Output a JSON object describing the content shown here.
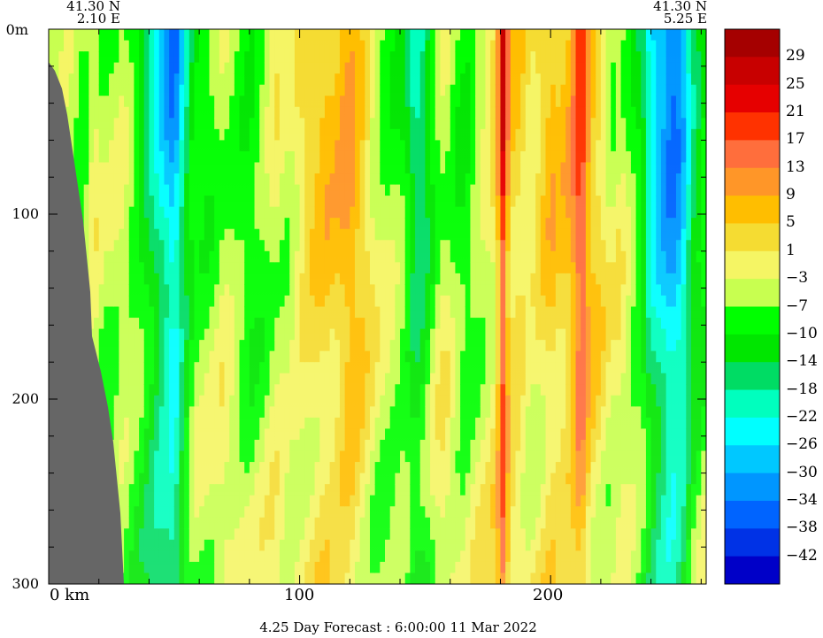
{
  "corners": {
    "left": {
      "lat": "41.30 N",
      "lon": "2.10 E"
    },
    "right": {
      "lat": "41.30 N",
      "lon": "5.25 E"
    }
  },
  "chart_data": {
    "type": "heatmap",
    "title": "",
    "xlabel": "",
    "ylabel": "",
    "x_unit": "km",
    "xlim": [
      0,
      262
    ],
    "ylim": [
      0,
      300
    ],
    "x_ticks": [
      {
        "value": 0,
        "label": "0 km"
      },
      {
        "value": 100,
        "label": "100"
      },
      {
        "value": 200,
        "label": "200"
      }
    ],
    "y_ticks": [
      {
        "value": 0,
        "label": "0m"
      },
      {
        "value": 100,
        "label": "100"
      },
      {
        "value": 200,
        "label": "200"
      },
      {
        "value": 300,
        "label": "300"
      }
    ],
    "colorbar": {
      "labels": [
        "29",
        "25",
        "21",
        "17",
        "13",
        "9",
        "5",
        "1",
        "−3",
        "−7",
        "−10",
        "−14",
        "−18",
        "−22",
        "−26",
        "−30",
        "−34",
        "−38",
        "−42"
      ],
      "colors_top_to_bottom": [
        "#a50000",
        "#c80000",
        "#e60000",
        "#ff3200",
        "#ff6e3c",
        "#ff9628",
        "#ffbe00",
        "#f5dc32",
        "#f5f564",
        "#c8ff50",
        "#00ff00",
        "#00e600",
        "#00dc64",
        "#00ffbe",
        "#00ffff",
        "#00c8ff",
        "#0096ff",
        "#0064ff",
        "#0032e6",
        "#0000c8"
      ]
    },
    "section_profile": [
      [
        0,
        -8
      ],
      [
        8,
        -5
      ],
      [
        14,
        -9
      ],
      [
        18,
        -1
      ],
      [
        22,
        -7
      ],
      [
        30,
        -4
      ],
      [
        38,
        -14
      ],
      [
        44,
        -24
      ],
      [
        50,
        -34
      ],
      [
        54,
        -20
      ],
      [
        58,
        -9
      ],
      [
        64,
        -8
      ],
      [
        70,
        -2
      ],
      [
        76,
        -7
      ],
      [
        80,
        -10
      ],
      [
        86,
        -6
      ],
      [
        90,
        -1
      ],
      [
        96,
        -4
      ],
      [
        100,
        1
      ],
      [
        104,
        4
      ],
      [
        110,
        7
      ],
      [
        114,
        6
      ],
      [
        120,
        11
      ],
      [
        126,
        4
      ],
      [
        130,
        -3
      ],
      [
        134,
        -6
      ],
      [
        138,
        -7
      ],
      [
        142,
        -10
      ],
      [
        146,
        -20
      ],
      [
        150,
        -16
      ],
      [
        154,
        -6
      ],
      [
        158,
        -1
      ],
      [
        162,
        -7
      ],
      [
        166,
        -10
      ],
      [
        170,
        -5
      ],
      [
        174,
        -2
      ],
      [
        178,
        3
      ],
      [
        181,
        26
      ],
      [
        184,
        6
      ],
      [
        188,
        4
      ],
      [
        192,
        -1
      ],
      [
        196,
        3
      ],
      [
        200,
        8
      ],
      [
        204,
        5
      ],
      [
        208,
        9
      ],
      [
        212,
        22
      ],
      [
        216,
        7
      ],
      [
        220,
        3
      ],
      [
        224,
        -4
      ],
      [
        228,
        -1
      ],
      [
        232,
        -7
      ],
      [
        236,
        -12
      ],
      [
        240,
        -24
      ],
      [
        244,
        -30
      ],
      [
        248,
        -36
      ],
      [
        252,
        -32
      ],
      [
        256,
        -18
      ],
      [
        262,
        -8
      ]
    ]
  },
  "footer": "4.25 Day Forecast :  6:00:00  11 Mar 2022"
}
